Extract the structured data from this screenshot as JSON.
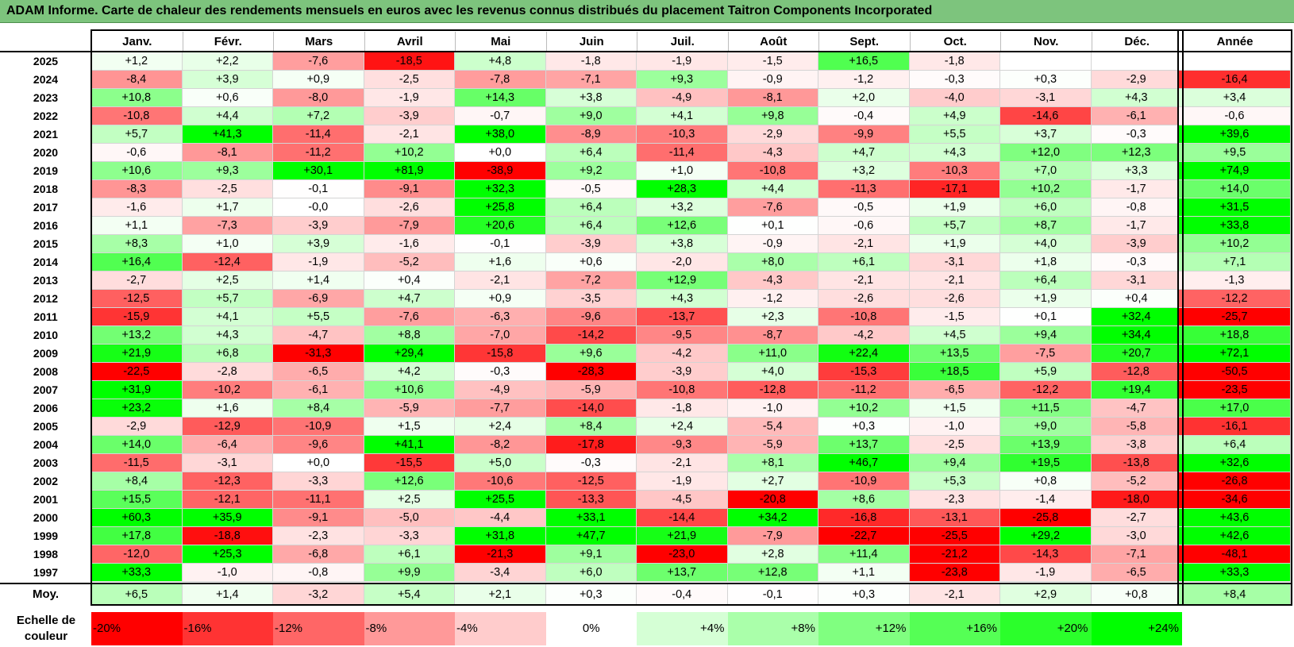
{
  "title": "ADAM Informe. Carte de chaleur des rendements mensuels en euros avec les revenus connus distribués du placement Taitron Components Incorporated",
  "legend_title": "Echelle de couleur",
  "chart_data": {
    "type": "heatmap",
    "months": [
      "Janv.",
      "Févr.",
      "Mars",
      "Avril",
      "Mai",
      "Juin",
      "Juil.",
      "Août",
      "Sept.",
      "Oct.",
      "Nov.",
      "Déc."
    ],
    "year_label": "Année",
    "avg_label": "Moy.",
    "years": [
      "2025",
      "2024",
      "2023",
      "2022",
      "2021",
      "2020",
      "2019",
      "2018",
      "2017",
      "2016",
      "2015",
      "2014",
      "2013",
      "2012",
      "2011",
      "2010",
      "2009",
      "2008",
      "2007",
      "2006",
      "2005",
      "2004",
      "2003",
      "2002",
      "2001",
      "2000",
      "1999",
      "1998",
      "1997"
    ],
    "values": [
      [
        "+1,2",
        "+2,2",
        "-7,6",
        "-18,5",
        "+4,8",
        "-1,8",
        "-1,9",
        "-1,5",
        "+16,5",
        "-1,8",
        "",
        ""
      ],
      [
        "-8,4",
        "+3,9",
        "+0,9",
        "-2,5",
        "-7,8",
        "-7,1",
        "+9,3",
        "-0,9",
        "-1,2",
        "-0,3",
        "+0,3",
        "-2,9"
      ],
      [
        "+10,8",
        "+0,6",
        "-8,0",
        "-1,9",
        "+14,3",
        "+3,8",
        "-4,9",
        "-8,1",
        "+2,0",
        "-4,0",
        "-3,1",
        "+4,3"
      ],
      [
        "-10,8",
        "+4,4",
        "+7,2",
        "-3,9",
        "-0,7",
        "+9,0",
        "+4,1",
        "+9,8",
        "-0,4",
        "+4,9",
        "-14,6",
        "-6,1"
      ],
      [
        "+5,7",
        "+41,3",
        "-11,4",
        "-2,1",
        "+38,0",
        "-8,9",
        "-10,3",
        "-2,9",
        "-9,9",
        "+5,5",
        "+3,7",
        "-0,3"
      ],
      [
        "-0,6",
        "-8,1",
        "-11,2",
        "+10,2",
        "+0,0",
        "+6,4",
        "-11,4",
        "-4,3",
        "+4,7",
        "+4,3",
        "+12,0",
        "+12,3"
      ],
      [
        "+10,6",
        "+9,3",
        "+30,1",
        "+81,9",
        "-38,9",
        "+9,2",
        "+1,0",
        "-10,8",
        "+3,2",
        "-10,3",
        "+7,0",
        "+3,3"
      ],
      [
        "-8,3",
        "-2,5",
        "-0,1",
        "-9,1",
        "+32,3",
        "-0,5",
        "+28,3",
        "+4,4",
        "-11,3",
        "-17,1",
        "+10,2",
        "-1,7"
      ],
      [
        "-1,6",
        "+1,7",
        "-0,0",
        "-2,6",
        "+25,8",
        "+6,4",
        "+3,2",
        "-7,6",
        "-0,5",
        "+1,9",
        "+6,0",
        "-0,8"
      ],
      [
        "+1,1",
        "-7,3",
        "-3,9",
        "-7,9",
        "+20,6",
        "+6,4",
        "+12,6",
        "+0,1",
        "-0,6",
        "+5,7",
        "+8,7",
        "-1,7"
      ],
      [
        "+8,3",
        "+1,0",
        "+3,9",
        "-1,6",
        "-0,1",
        "-3,9",
        "+3,8",
        "-0,9",
        "-2,1",
        "+1,9",
        "+4,0",
        "-3,9"
      ],
      [
        "+16,4",
        "-12,4",
        "-1,9",
        "-5,2",
        "+1,6",
        "+0,6",
        "-2,0",
        "+8,0",
        "+6,1",
        "-3,1",
        "+1,8",
        "-0,3"
      ],
      [
        "-2,7",
        "+2,5",
        "+1,4",
        "+0,4",
        "-2,1",
        "-7,2",
        "+12,9",
        "-4,3",
        "-2,1",
        "-2,1",
        "+6,4",
        "-3,1"
      ],
      [
        "-12,5",
        "+5,7",
        "-6,9",
        "+4,7",
        "+0,9",
        "-3,5",
        "+4,3",
        "-1,2",
        "-2,6",
        "-2,6",
        "+1,9",
        "+0,4"
      ],
      [
        "-15,9",
        "+4,1",
        "+5,5",
        "-7,6",
        "-6,3",
        "-9,6",
        "-13,7",
        "+2,3",
        "-10,8",
        "-1,5",
        "+0,1",
        "+32,4"
      ],
      [
        "+13,2",
        "+4,3",
        "-4,7",
        "+8,8",
        "-7,0",
        "-14,2",
        "-9,5",
        "-8,7",
        "-4,2",
        "+4,5",
        "+9,4",
        "+34,4"
      ],
      [
        "+21,9",
        "+6,8",
        "-31,3",
        "+29,4",
        "-15,8",
        "+9,6",
        "-4,2",
        "+11,0",
        "+22,4",
        "+13,5",
        "-7,5",
        "+20,7"
      ],
      [
        "-22,5",
        "-2,8",
        "-6,5",
        "+4,2",
        "-0,3",
        "-28,3",
        "-3,9",
        "+4,0",
        "-15,3",
        "+18,5",
        "+5,9",
        "-12,8"
      ],
      [
        "+31,9",
        "-10,2",
        "-6,1",
        "+10,6",
        "-4,9",
        "-5,9",
        "-10,8",
        "-12,8",
        "-11,2",
        "-6,5",
        "-12,2",
        "+19,4"
      ],
      [
        "+23,2",
        "+1,6",
        "+8,4",
        "-5,9",
        "-7,7",
        "-14,0",
        "-1,8",
        "-1,0",
        "+10,2",
        "+1,5",
        "+11,5",
        "-4,7"
      ],
      [
        "-2,9",
        "-12,9",
        "-10,9",
        "+1,5",
        "+2,4",
        "+8,4",
        "+2,4",
        "-5,4",
        "+0,3",
        "-1,0",
        "+9,0",
        "-5,8"
      ],
      [
        "+14,0",
        "-6,4",
        "-9,6",
        "+41,1",
        "-8,2",
        "-17,8",
        "-9,3",
        "-5,9",
        "+13,7",
        "-2,5",
        "+13,9",
        "-3,8"
      ],
      [
        "-11,5",
        "-3,1",
        "+0,0",
        "-15,5",
        "+5,0",
        "-0,3",
        "-2,1",
        "+8,1",
        "+46,7",
        "+9,4",
        "+19,5",
        "-13,8"
      ],
      [
        "+8,4",
        "-12,3",
        "-3,3",
        "+12,6",
        "-10,6",
        "-12,5",
        "-1,9",
        "+2,7",
        "-10,9",
        "+5,3",
        "+0,8",
        "-5,2"
      ],
      [
        "+15,5",
        "-12,1",
        "-11,1",
        "+2,5",
        "+25,5",
        "-13,3",
        "-4,5",
        "-20,8",
        "+8,6",
        "-2,3",
        "-1,4",
        "-18,0"
      ],
      [
        "+60,3",
        "+35,9",
        "-9,1",
        "-5,0",
        "-4,4",
        "+33,1",
        "-14,4",
        "+34,2",
        "-16,8",
        "-13,1",
        "-25,8",
        "-2,7"
      ],
      [
        "+17,8",
        "-18,8",
        "-2,3",
        "-3,3",
        "+31,8",
        "+47,7",
        "+21,9",
        "-7,9",
        "-22,7",
        "-25,5",
        "+29,2",
        "-3,0"
      ],
      [
        "-12,0",
        "+25,3",
        "-6,8",
        "+6,1",
        "-21,3",
        "+9,1",
        "-23,0",
        "+2,8",
        "+11,4",
        "-21,2",
        "-14,3",
        "-7,1"
      ],
      [
        "+33,3",
        "-1,0",
        "-0,8",
        "+9,9",
        "-3,4",
        "+6,0",
        "+13,7",
        "+12,8",
        "+1,1",
        "-23,8",
        "-1,9",
        "-6,5"
      ]
    ],
    "annual": [
      "",
      "-16,4",
      "+3,4",
      "-0,6",
      "+39,6",
      "+9,5",
      "+74,9",
      "+14,0",
      "+31,5",
      "+33,8",
      "+10,2",
      "+7,1",
      "-1,3",
      "-12,2",
      "-25,7",
      "+18,8",
      "+72,1",
      "-50,5",
      "-23,5",
      "+17,0",
      "-16,1",
      "+6,4",
      "+32,6",
      "-26,8",
      "-34,6",
      "+43,6",
      "+42,6",
      "-48,1",
      "+33,3"
    ],
    "averages": [
      "+6,5",
      "+1,4",
      "-3,2",
      "+5,4",
      "+2,1",
      "+0,3",
      "-0,4",
      "-0,1",
      "+0,3",
      "-2,1",
      "+2,9",
      "+0,8"
    ],
    "average_annual": "+8,4",
    "scale_labels": [
      "-20%",
      "-16%",
      "-12%",
      "-8%",
      "-4%",
      "0%",
      "+4%",
      "+8%",
      "+12%",
      "+16%",
      "+20%",
      "+24%"
    ],
    "scale_values": [
      -20,
      -16,
      -12,
      -8,
      -4,
      0,
      4,
      8,
      12,
      16,
      20,
      24
    ],
    "color_negative": "#ff0000",
    "color_zero": "#ffffff",
    "color_positive": "#00ff00"
  }
}
